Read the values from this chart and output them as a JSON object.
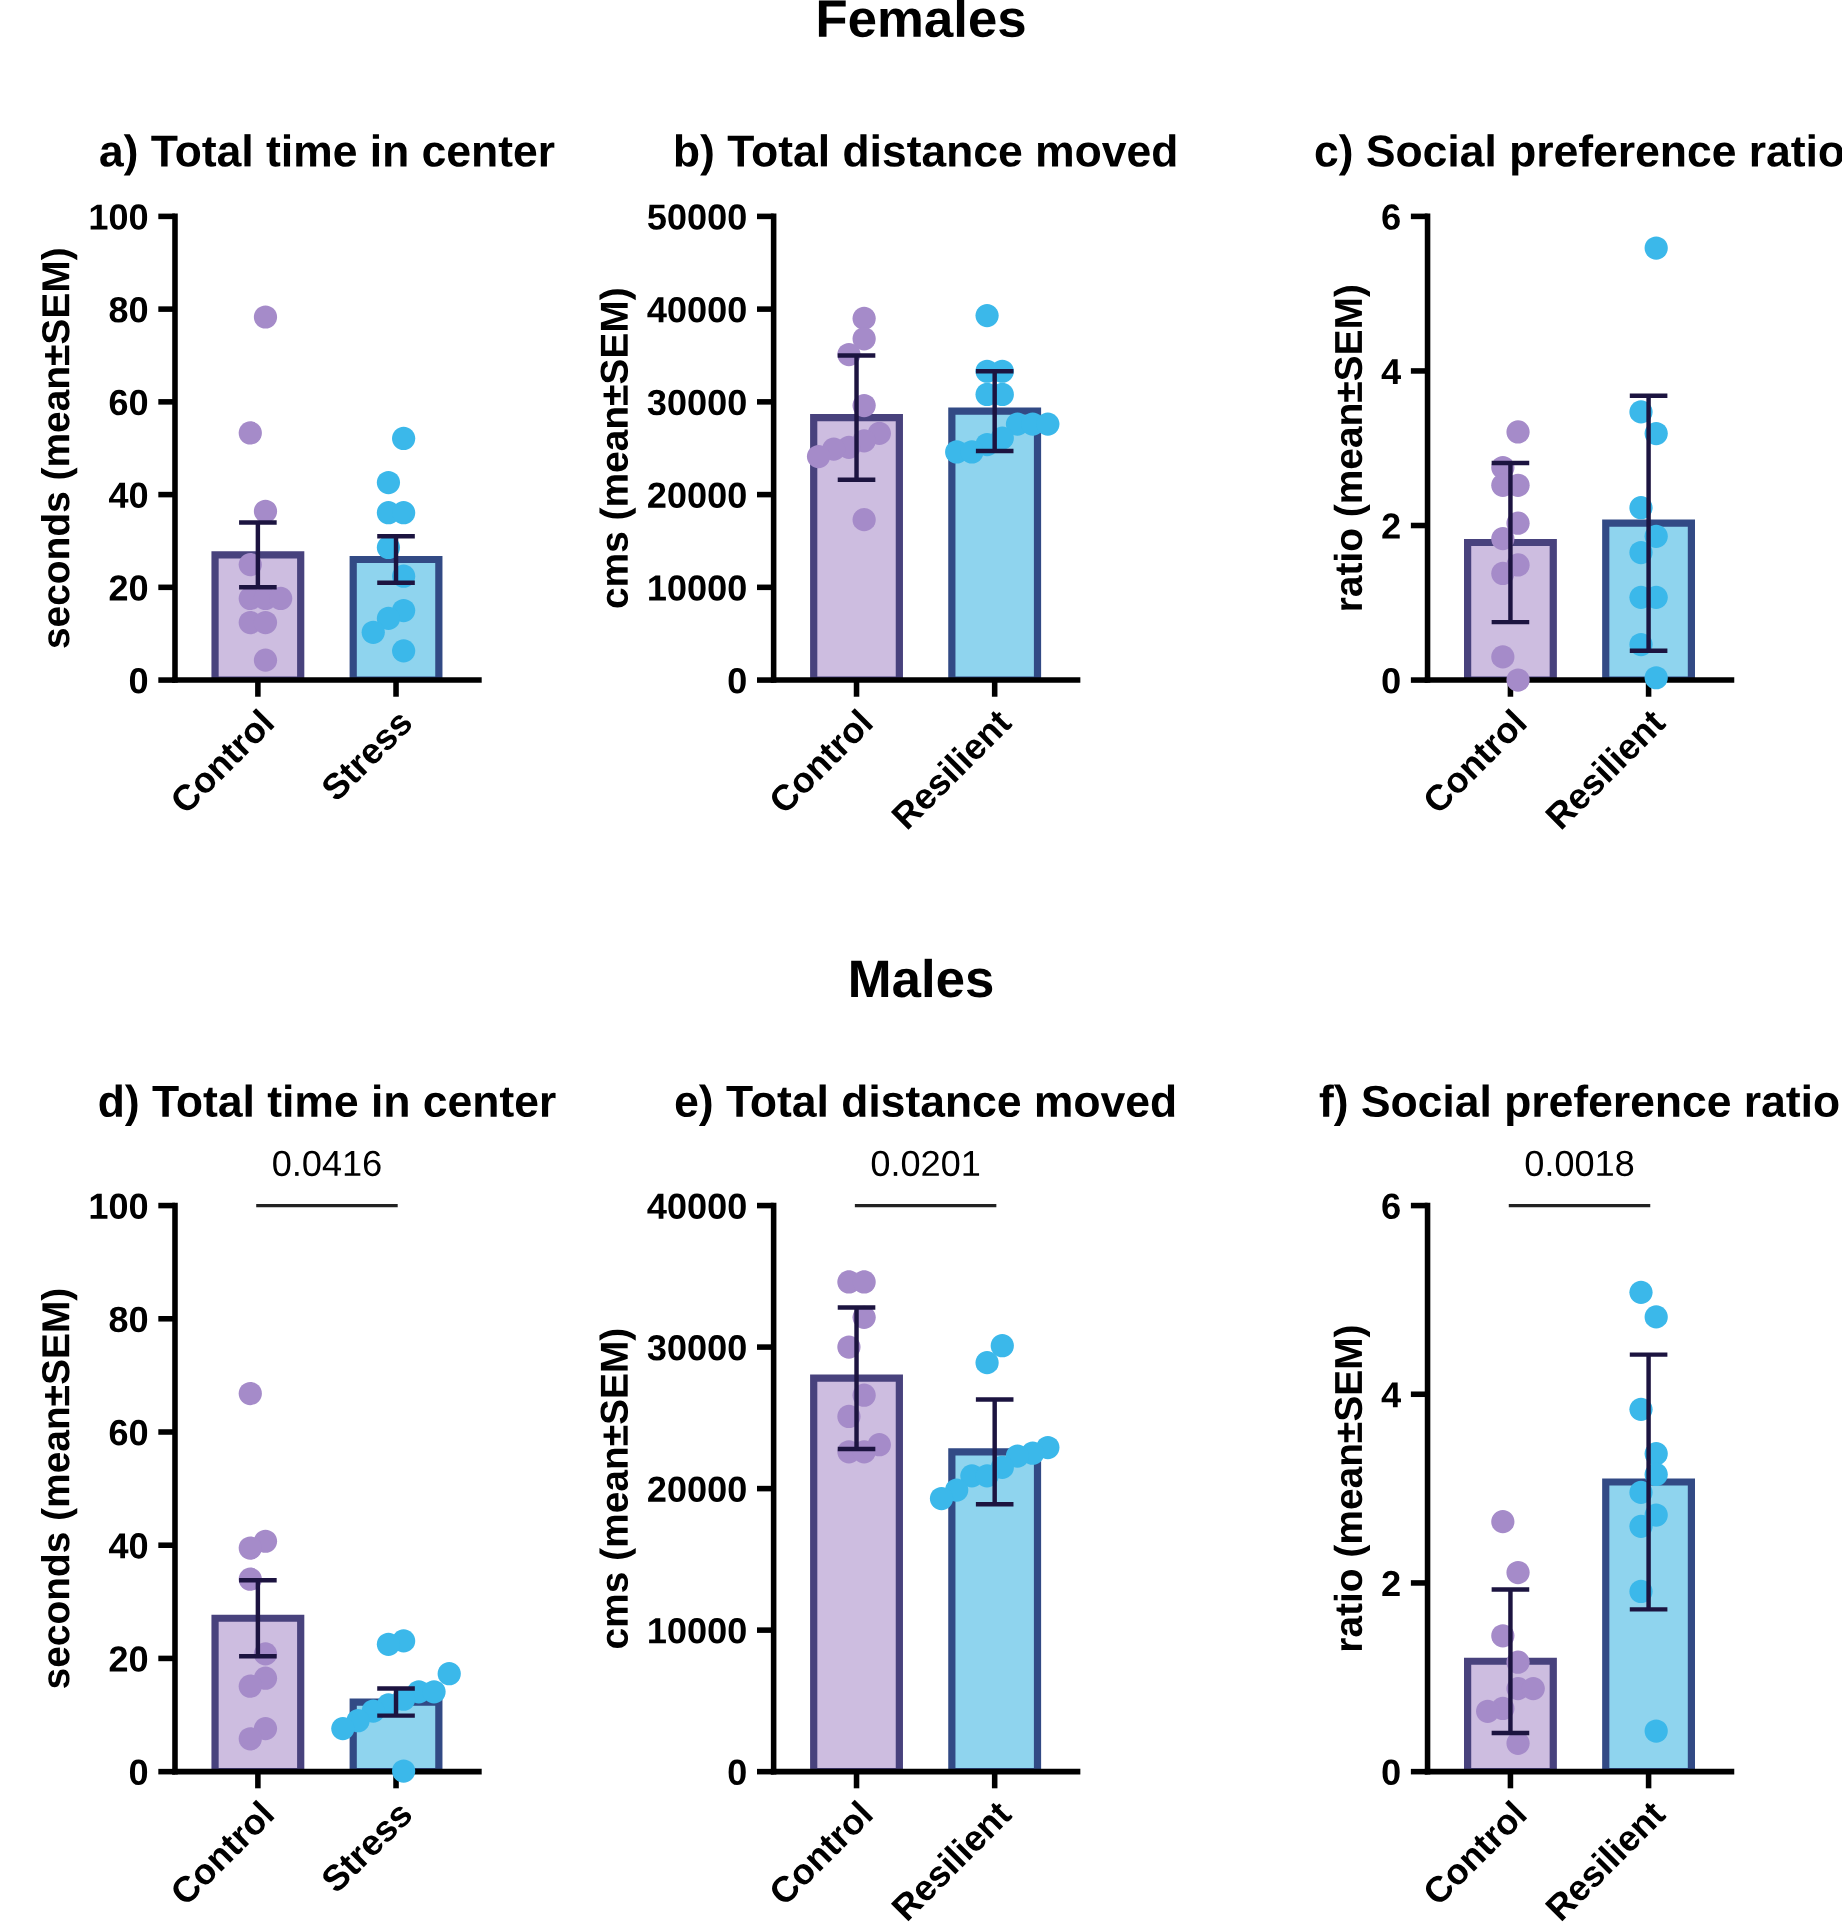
{
  "chart_data": [
    {
      "type": "bar",
      "title": "a) Total time in center",
      "ylabel": "seconds (mean±SEM)",
      "categories": [
        "Control",
        "Stress"
      ],
      "ylim": [
        0,
        100
      ],
      "yticks": [
        0,
        20,
        40,
        60,
        80,
        100
      ],
      "grid": false,
      "annotations": [
        "Females"
      ],
      "series": [
        {
          "values": [
            27,
            26
          ],
          "colors": [
            "#cdbde0",
            "#8fd4ee"
          ],
          "errors": [
            7,
            5
          ]
        },
        {
          "type": "scatter",
          "color": "#a58bc9",
          "x": [
            "Control",
            "Control",
            "Control",
            "Control",
            "Control",
            "Control",
            "Control",
            "Control",
            "Control",
            "Control"
          ],
          "values": [
            78.3,
            53.3,
            36.4,
            24.9,
            17.6,
            17.6,
            17.6,
            12.4,
            12.4,
            4.3
          ]
        },
        {
          "type": "scatter",
          "color": "#3bb8ea",
          "x": [
            "Stress",
            "Stress",
            "Stress",
            "Stress",
            "Stress",
            "Stress",
            "Stress",
            "Stress",
            "Stress",
            "Stress"
          ],
          "values": [
            52.1,
            42.6,
            36.1,
            36.1,
            28.6,
            22.4,
            15,
            13.3,
            10.3,
            6.3
          ]
        }
      ]
    },
    {
      "type": "bar",
      "title": "b) Total distance moved",
      "ylabel": "cms (mean±SEM)",
      "categories": [
        "Control",
        "Resilient"
      ],
      "ylim": [
        0,
        50000
      ],
      "yticks": [
        0,
        10000,
        20000,
        30000,
        40000,
        50000
      ],
      "grid": false,
      "series": [
        {
          "values": [
            28300,
            29000
          ],
          "colors": [
            "#cdbde0",
            "#8fd4ee"
          ],
          "errors": [
            6700,
            4300
          ]
        },
        {
          "type": "scatter",
          "color": "#a58bc9",
          "x": [
            "Control",
            "Control",
            "Control",
            "Control",
            "Control",
            "Control",
            "Control",
            "Control",
            "Control",
            "Control"
          ],
          "values": [
            39000,
            36800,
            35100,
            29600,
            26600,
            25800,
            25100,
            24900,
            24100,
            17300
          ]
        },
        {
          "type": "scatter",
          "color": "#3bb8ea",
          "x": [
            "Resilient",
            "Resilient",
            "Resilient",
            "Resilient",
            "Resilient",
            "Resilient",
            "Resilient",
            "Resilient",
            "Resilient",
            "Resilient",
            "Resilient",
            "Resilient"
          ],
          "values": [
            39300,
            33300,
            33300,
            30800,
            30800,
            27600,
            27600,
            27600,
            26100,
            25400,
            24600,
            24600
          ]
        }
      ]
    },
    {
      "type": "bar",
      "title": "c) Social preference ratio",
      "ylabel": "ratio (mean±SEM)",
      "categories": [
        "Control",
        "Resilient"
      ],
      "ylim": [
        0,
        6
      ],
      "yticks": [
        0,
        2,
        4,
        6
      ],
      "grid": false,
      "series": [
        {
          "values": [
            1.78,
            2.03
          ],
          "colors": [
            "#cdbde0",
            "#8fd4ee"
          ],
          "errors": [
            1.03,
            1.65
          ]
        },
        {
          "type": "scatter",
          "color": "#a58bc9",
          "x": [
            "Control",
            "Control",
            "Control",
            "Control",
            "Control",
            "Control",
            "Control",
            "Control",
            "Control",
            "Control"
          ],
          "values": [
            3.21,
            2.75,
            2.52,
            2.52,
            2.03,
            1.83,
            1.49,
            1.38,
            0.3,
            0
          ]
        },
        {
          "type": "scatter",
          "color": "#3bb8ea",
          "x": [
            "Resilient",
            "Resilient",
            "Resilient",
            "Resilient",
            "Resilient",
            "Resilient",
            "Resilient",
            "Resilient",
            "Resilient",
            "Resilient"
          ],
          "values": [
            5.59,
            3.47,
            3.19,
            2.23,
            1.86,
            1.65,
            1.07,
            1.07,
            0.46,
            0.03
          ]
        }
      ]
    },
    {
      "type": "bar",
      "title": "d) Total time in center",
      "ylabel": "seconds (mean±SEM)",
      "categories": [
        "Control",
        "Stress"
      ],
      "ylim": [
        0,
        100
      ],
      "yticks": [
        0,
        20,
        40,
        60,
        80,
        100
      ],
      "grid": false,
      "annotations": [
        "Males",
        "0.0416"
      ],
      "series": [
        {
          "values": [
            27.1,
            12.3
          ],
          "colors": [
            "#cdbde0",
            "#8fd4ee"
          ],
          "errors": [
            6.7,
            2.4
          ]
        },
        {
          "type": "scatter",
          "color": "#a58bc9",
          "x": [
            "Control",
            "Control",
            "Control",
            "Control",
            "Control",
            "Control",
            "Control",
            "Control",
            "Control"
          ],
          "values": [
            66.8,
            40.7,
            39.5,
            34,
            20.8,
            16.5,
            15.1,
            7.6,
            5.8
          ]
        },
        {
          "type": "scatter",
          "color": "#3bb8ea",
          "x": [
            "Stress",
            "Stress",
            "Stress",
            "Stress",
            "Stress",
            "Stress",
            "Stress",
            "Stress",
            "Stress",
            "Stress",
            "Stress"
          ],
          "values": [
            23.1,
            22.5,
            17.3,
            14.1,
            14.1,
            12.8,
            11.8,
            10.7,
            9,
            7.6,
            0.1
          ]
        }
      ]
    },
    {
      "type": "bar",
      "title": "e) Total distance moved",
      "ylabel": "cms (mean±SEM)",
      "categories": [
        "Control",
        "Resilient"
      ],
      "ylim": [
        0,
        40000
      ],
      "yticks": [
        0,
        10000,
        20000,
        30000,
        40000
      ],
      "grid": false,
      "annotations": [
        "0.0201"
      ],
      "series": [
        {
          "values": [
            27800,
            22600
          ],
          "colors": [
            "#cdbde0",
            "#8fd4ee"
          ],
          "errors": [
            5000,
            3700
          ]
        },
        {
          "type": "scatter",
          "color": "#a58bc9",
          "x": [
            "Control",
            "Control",
            "Control",
            "Control",
            "Control",
            "Control",
            "Control",
            "Control",
            "Control"
          ],
          "values": [
            34600,
            34600,
            32100,
            30000,
            26600,
            25100,
            23100,
            22600,
            22600
          ]
        },
        {
          "type": "scatter",
          "color": "#3bb8ea",
          "x": [
            "Resilient",
            "Resilient",
            "Resilient",
            "Resilient",
            "Resilient",
            "Resilient",
            "Resilient",
            "Resilient",
            "Resilient",
            "Resilient"
          ],
          "values": [
            30100,
            28900,
            22900,
            22500,
            22300,
            21500,
            20900,
            20900,
            19900,
            19300
          ]
        }
      ]
    },
    {
      "type": "bar",
      "title": "f) Social preference ratio",
      "ylabel": "ratio (mean±SEM)",
      "categories": [
        "Control",
        "Resilient"
      ],
      "ylim": [
        0,
        6
      ],
      "yticks": [
        0,
        2,
        4,
        6
      ],
      "grid": false,
      "annotations": [
        "0.0018"
      ],
      "series": [
        {
          "values": [
            1.17,
            3.07
          ],
          "colors": [
            "#cdbde0",
            "#8fd4ee"
          ],
          "errors": [
            0.76,
            1.35
          ]
        },
        {
          "type": "scatter",
          "color": "#a58bc9",
          "x": [
            "Control",
            "Control",
            "Control",
            "Control",
            "Control",
            "Control",
            "Control",
            "Control",
            "Control"
          ],
          "values": [
            2.65,
            2.11,
            1.44,
            1.16,
            0.88,
            0.88,
            0.67,
            0.64,
            0.3
          ]
        },
        {
          "type": "scatter",
          "color": "#3bb8ea",
          "x": [
            "Resilient",
            "Resilient",
            "Resilient",
            "Resilient",
            "Resilient",
            "Resilient",
            "Resilient",
            "Resilient",
            "Resilient",
            "Resilient"
          ],
          "values": [
            5.08,
            4.82,
            3.84,
            3.37,
            3.15,
            2.96,
            2.72,
            2.6,
            1.91,
            0.43
          ]
        }
      ]
    }
  ]
}
